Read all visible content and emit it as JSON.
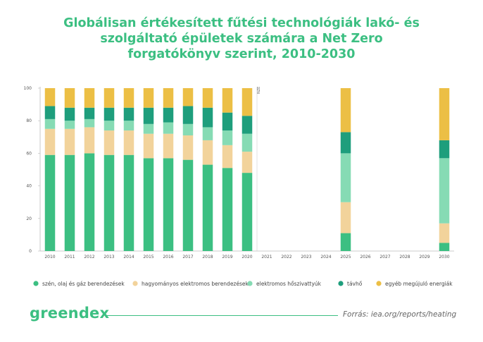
{
  "title_lines": [
    "Globálisan értékesített fűtési technológiák lakó- és",
    "szolgáltató épületek számára a Net Zero",
    "forgatókönyv szerint, 2010-2030"
  ],
  "footer": {
    "logo": "greendex",
    "source_prefix": "Forrás:",
    "source_url": "iea.org/reports/heating"
  },
  "colors": {
    "szen": "#3cbf82",
    "hagyomanyos": "#f2d39b",
    "hoszivattyu": "#86dbb4",
    "tavho": "#1e9e7c",
    "egyeb": "#ecbf45",
    "axis": "#bbbbbb",
    "title": "#3cbf82"
  },
  "chart_data": {
    "type": "bar",
    "stacked": true,
    "categories": [
      "2010",
      "2011",
      "2012",
      "2013",
      "2014",
      "2015",
      "2016",
      "2017",
      "2018",
      "2019",
      "2020",
      "2021",
      "2022",
      "2023",
      "2024",
      "2025",
      "2026",
      "2027",
      "2028",
      "2029",
      "2030"
    ],
    "ylim": [
      0,
      100
    ],
    "yticks": [
      0,
      20,
      40,
      60,
      80,
      100
    ],
    "grid": false,
    "legend_position": "bottom",
    "annotation": {
      "text": "NZE",
      "after_category": "2020"
    },
    "series": [
      {
        "name": "szén, olaj és gáz berendezések",
        "color_key": "szen",
        "values": [
          59,
          59,
          60,
          59,
          59,
          57,
          57,
          56,
          53,
          51,
          48,
          null,
          null,
          null,
          null,
          11,
          null,
          null,
          null,
          null,
          5
        ]
      },
      {
        "name": "hagyományos elektromos berendezések",
        "color_key": "hagyomanyos",
        "values": [
          16,
          16,
          16,
          15,
          15,
          15,
          15,
          15,
          15,
          14,
          13,
          null,
          null,
          null,
          null,
          19,
          null,
          null,
          null,
          null,
          12
        ]
      },
      {
        "name": "elektromos hőszivattyúk",
        "color_key": "hoszivattyu",
        "values": [
          6,
          5,
          5,
          6,
          6,
          6,
          7,
          7,
          8,
          9,
          11,
          null,
          null,
          null,
          null,
          30,
          null,
          null,
          null,
          null,
          40
        ]
      },
      {
        "name": "távhő",
        "color_key": "tavho",
        "values": [
          8,
          8,
          7,
          8,
          8,
          10,
          9,
          11,
          12,
          11,
          11,
          null,
          null,
          null,
          null,
          13,
          null,
          null,
          null,
          null,
          11
        ]
      },
      {
        "name": "egyéb megújuló energiák",
        "color_key": "egyeb",
        "values": [
          11,
          12,
          12,
          12,
          12,
          12,
          12,
          11,
          12,
          15,
          17,
          null,
          null,
          null,
          null,
          27,
          null,
          null,
          null,
          null,
          32
        ]
      }
    ]
  }
}
